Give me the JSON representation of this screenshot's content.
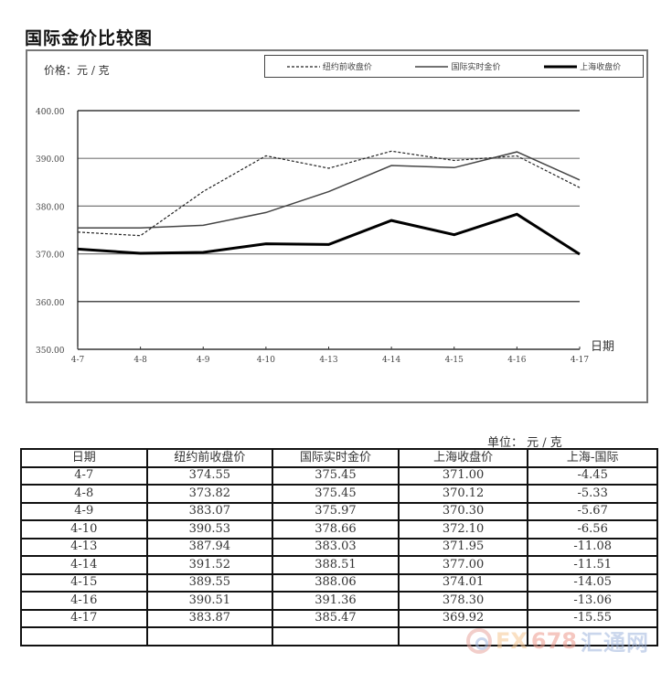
{
  "title": "国际金价比较图",
  "chart_data": {
    "type": "line",
    "title": "国际金价比较图",
    "ylabel": "价格：元 / 克",
    "xlabel": "日期",
    "ylim": [
      350,
      400
    ],
    "yticks": [
      "350.00",
      "360.00",
      "370.00",
      "380.00",
      "390.00",
      "400.00"
    ],
    "grid": true,
    "legend_position": "top-right",
    "categories": [
      "4-7",
      "4-8",
      "4-9",
      "4-10",
      "4-13",
      "4-14",
      "4-15",
      "4-16",
      "4-17"
    ],
    "series": [
      {
        "name": "纽约前收盘价",
        "style": "dashed",
        "color": "#222222",
        "width": 1.2,
        "values": [
          374.55,
          373.82,
          383.07,
          390.53,
          387.94,
          391.52,
          389.55,
          390.51,
          383.87
        ]
      },
      {
        "name": "国际实时金价",
        "style": "solid",
        "color": "#444444",
        "width": 1.5,
        "values": [
          375.45,
          375.45,
          375.97,
          378.66,
          383.03,
          388.51,
          388.06,
          391.36,
          385.47
        ]
      },
      {
        "name": "上海收盘价",
        "style": "solid-bold",
        "color": "#000000",
        "width": 3,
        "values": [
          371.0,
          370.12,
          370.3,
          372.1,
          371.95,
          377.0,
          374.01,
          378.3,
          369.92
        ]
      }
    ]
  },
  "legend": {
    "ny": "纽约前收盘价",
    "intl": "国际实时金价",
    "sh": "上海收盘价"
  },
  "chart": {
    "unit_label": "价格：元 / 克",
    "x_title": "日期"
  },
  "table": {
    "unit": "单位：  元 / 克",
    "headers": [
      "日期",
      "纽约前收盘价",
      "国际实时金价",
      "上海收盘价",
      "上海-国际"
    ],
    "rows": [
      [
        "4-7",
        "374.55",
        "375.45",
        "371.00",
        "-4.45"
      ],
      [
        "4-8",
        "373.82",
        "375.45",
        "370.12",
        "-5.33"
      ],
      [
        "4-9",
        "383.07",
        "375.97",
        "370.30",
        "-5.67"
      ],
      [
        "4-10",
        "390.53",
        "378.66",
        "372.10",
        "-6.56"
      ],
      [
        "4-13",
        "387.94",
        "383.03",
        "371.95",
        "-11.08"
      ],
      [
        "4-14",
        "391.52",
        "388.51",
        "377.00",
        "-11.51"
      ],
      [
        "4-15",
        "389.55",
        "388.06",
        "374.01",
        "-14.05"
      ],
      [
        "4-16",
        "390.51",
        "391.36",
        "378.30",
        "-13.06"
      ],
      [
        "4-17",
        "383.87",
        "385.47",
        "369.92",
        "-15.55"
      ],
      [
        "",
        "",
        "",
        "",
        ""
      ]
    ]
  },
  "watermark": {
    "fx": "FX",
    "num": "678",
    "cn": "汇通网"
  }
}
